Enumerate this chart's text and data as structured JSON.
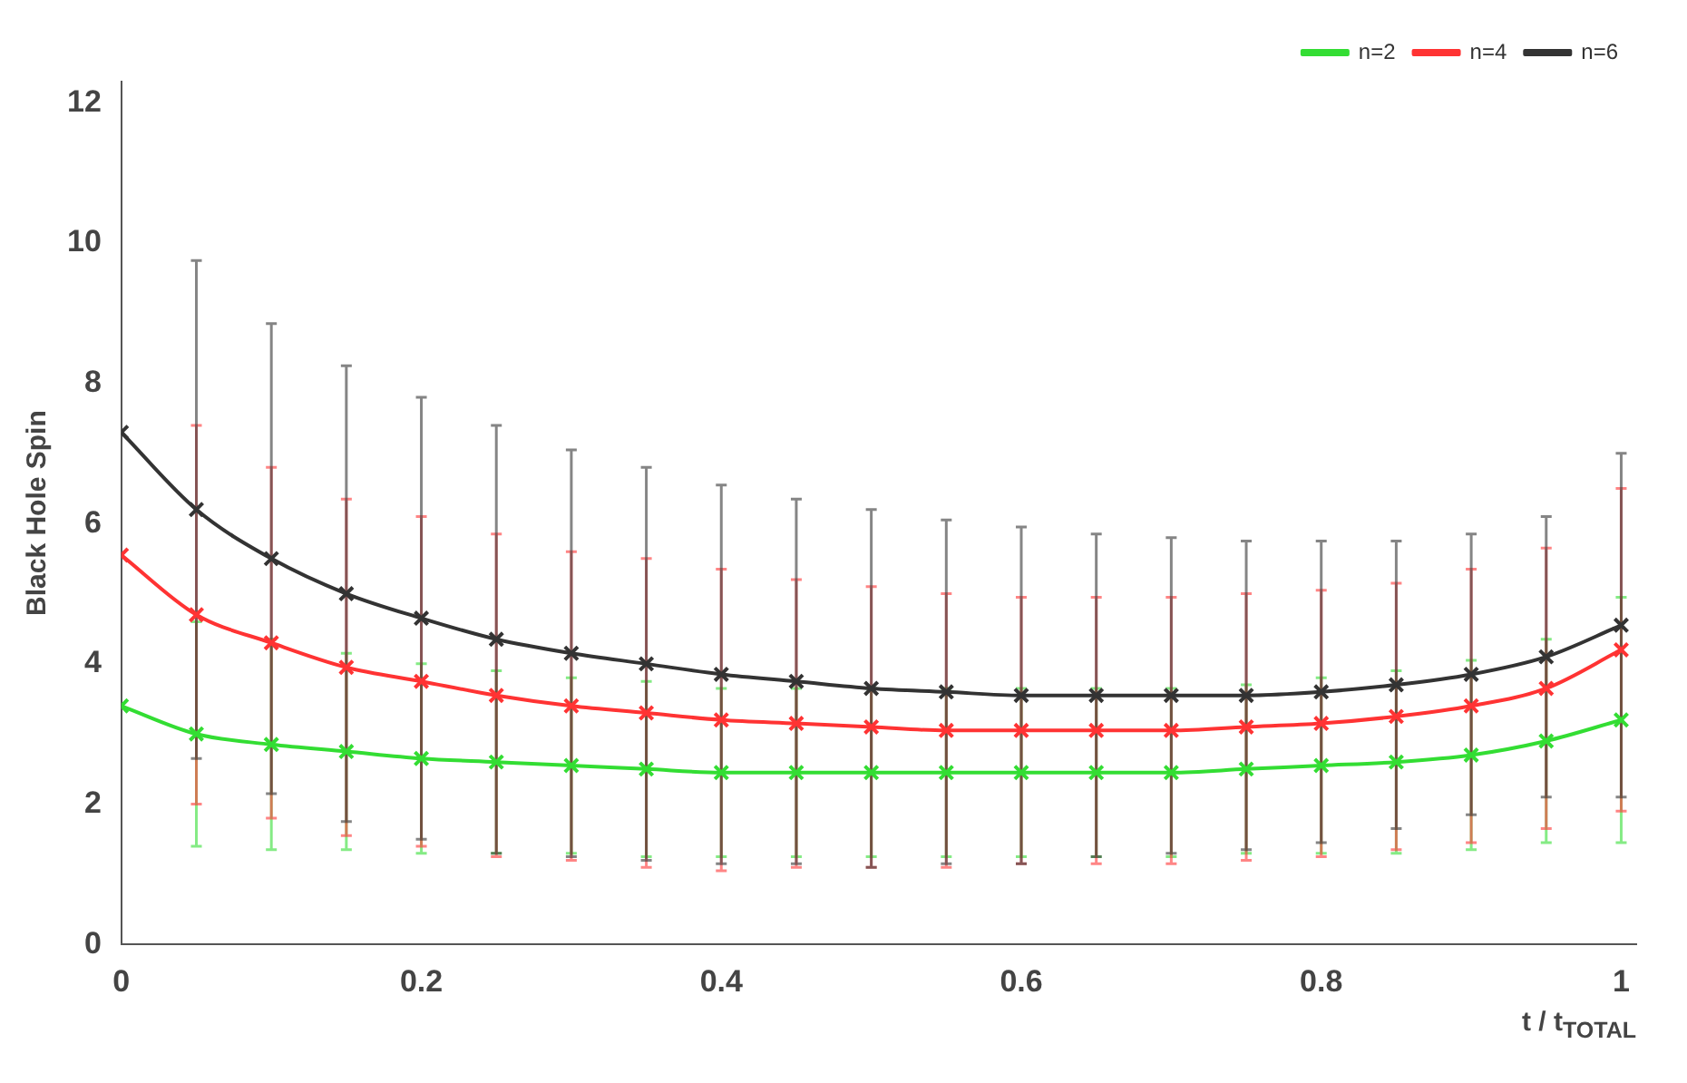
{
  "chart_data": {
    "type": "line",
    "ylabel": "Black Hole Spin",
    "xlabel": "t / t$_{TOTAL}$",
    "x": [
      0,
      0.05,
      0.1,
      0.15,
      0.2,
      0.25,
      0.3,
      0.35,
      0.4,
      0.45,
      0.5,
      0.55,
      0.6,
      0.65,
      0.7,
      0.75,
      0.8,
      0.85,
      0.9,
      0.95,
      1
    ],
    "series": [
      {
        "name": "n=2",
        "color": "#33dd33",
        "values": [
          3.4,
          3.0,
          2.85,
          2.75,
          2.65,
          2.6,
          2.55,
          2.5,
          2.45,
          2.45,
          2.45,
          2.45,
          2.45,
          2.45,
          2.45,
          2.5,
          2.55,
          2.6,
          2.7,
          2.9,
          3.2
        ],
        "errors": [
          null,
          1.6,
          1.5,
          1.4,
          1.35,
          1.3,
          1.25,
          1.25,
          1.2,
          1.2,
          1.2,
          1.2,
          1.2,
          1.2,
          1.2,
          1.2,
          1.25,
          1.3,
          1.35,
          1.45,
          1.75
        ]
      },
      {
        "name": "n=4",
        "color": "#ff3333",
        "values": [
          5.55,
          4.7,
          4.3,
          3.95,
          3.75,
          3.55,
          3.4,
          3.3,
          3.2,
          3.15,
          3.1,
          3.05,
          3.05,
          3.05,
          3.05,
          3.1,
          3.15,
          3.25,
          3.4,
          3.65,
          4.2
        ],
        "errors": [
          null,
          2.7,
          2.5,
          2.4,
          2.35,
          2.3,
          2.2,
          2.2,
          2.15,
          2.05,
          2.0,
          1.95,
          1.9,
          1.9,
          1.9,
          1.9,
          1.9,
          1.9,
          1.95,
          2.0,
          2.3
        ]
      },
      {
        "name": "n=6",
        "color": "#333333",
        "values": [
          7.3,
          6.2,
          5.5,
          5.0,
          4.65,
          4.35,
          4.15,
          4.0,
          3.85,
          3.75,
          3.65,
          3.6,
          3.55,
          3.55,
          3.55,
          3.55,
          3.6,
          3.7,
          3.85,
          4.1,
          4.55
        ],
        "errors": [
          null,
          3.55,
          3.35,
          3.25,
          3.15,
          3.05,
          2.9,
          2.8,
          2.7,
          2.6,
          2.55,
          2.45,
          2.4,
          2.3,
          2.25,
          2.2,
          2.15,
          2.05,
          2.0,
          2.0,
          2.45
        ]
      }
    ],
    "xlim": [
      0,
      1.01
    ],
    "xticks": [
      0,
      0.2,
      0.4,
      0.6,
      0.8,
      1
    ],
    "ylim": [
      0,
      12.3
    ],
    "yticks": [
      0,
      2,
      4,
      6,
      8,
      10,
      12
    ],
    "grid": false,
    "legend": "top right",
    "marker": "cross",
    "line_style": "solid"
  }
}
